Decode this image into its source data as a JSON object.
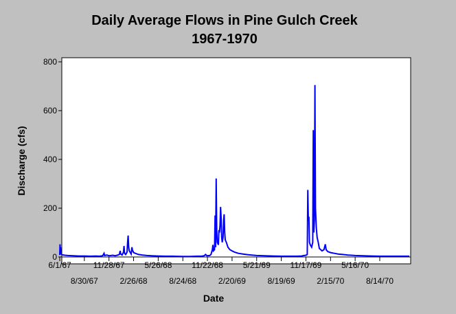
{
  "chart_data": {
    "type": "line",
    "title": "Daily Average Flows in Pine Gulch Creek",
    "subtitle": "1967-1970",
    "xlabel": "Date",
    "ylabel": "Discharge (cfs)",
    "ylim": [
      0,
      800
    ],
    "yticks": [
      0,
      200,
      400,
      600,
      800
    ],
    "xlim": [
      "1967-06-01",
      "1970-11-30"
    ],
    "xticks": [
      {
        "date": "1967-06-01",
        "label": "6/1/67"
      },
      {
        "date": "1967-08-30",
        "label": "8/30/67"
      },
      {
        "date": "1967-11-28",
        "label": "11/28/67"
      },
      {
        "date": "1968-02-26",
        "label": "2/26/68"
      },
      {
        "date": "1968-05-26",
        "label": "5/26/68"
      },
      {
        "date": "1968-08-24",
        "label": "8/24/68"
      },
      {
        "date": "1968-11-22",
        "label": "11/22/68"
      },
      {
        "date": "1969-02-20",
        "label": "2/20/69"
      },
      {
        "date": "1969-05-21",
        "label": "5/21/69"
      },
      {
        "date": "1969-08-19",
        "label": "8/19/69"
      },
      {
        "date": "1969-11-17",
        "label": "11/17/69"
      },
      {
        "date": "1970-02-15",
        "label": "2/15/70"
      },
      {
        "date": "1970-05-16",
        "label": "5/16/70"
      },
      {
        "date": "1970-08-14",
        "label": "8/14/70"
      }
    ],
    "grid": false,
    "legend": "none",
    "series": [
      {
        "color": "#0000ff",
        "points": [
          [
            "1967-06-01",
            8
          ],
          [
            "1967-06-02",
            52
          ],
          [
            "1967-06-03",
            15
          ],
          [
            "1967-06-04",
            40
          ],
          [
            "1967-06-06",
            12
          ],
          [
            "1967-06-10",
            9
          ],
          [
            "1967-06-20",
            7
          ],
          [
            "1967-07-01",
            6
          ],
          [
            "1967-07-20",
            5
          ],
          [
            "1967-08-10",
            4
          ],
          [
            "1967-09-01",
            4
          ],
          [
            "1967-09-20",
            3
          ],
          [
            "1967-10-10",
            4
          ],
          [
            "1967-10-25",
            3
          ],
          [
            "1967-11-05",
            5
          ],
          [
            "1967-11-10",
            15
          ],
          [
            "1967-11-12",
            6
          ],
          [
            "1967-11-20",
            8
          ],
          [
            "1967-11-28",
            5
          ],
          [
            "1967-12-05",
            6
          ],
          [
            "1967-12-12",
            7
          ],
          [
            "1967-12-20",
            5
          ],
          [
            "1967-12-28",
            7
          ],
          [
            "1968-01-05",
            10
          ],
          [
            "1968-01-08",
            25
          ],
          [
            "1968-01-10",
            12
          ],
          [
            "1968-01-15",
            8
          ],
          [
            "1968-01-20",
            20
          ],
          [
            "1968-01-22",
            45
          ],
          [
            "1968-01-24",
            15
          ],
          [
            "1968-01-28",
            10
          ],
          [
            "1968-02-02",
            20
          ],
          [
            "1968-02-04",
            60
          ],
          [
            "1968-02-06",
            88
          ],
          [
            "1968-02-08",
            40
          ],
          [
            "1968-02-10",
            25
          ],
          [
            "1968-02-14",
            18
          ],
          [
            "1968-02-17",
            12
          ],
          [
            "1968-02-20",
            40
          ],
          [
            "1968-02-22",
            28
          ],
          [
            "1968-02-26",
            18
          ],
          [
            "1968-03-05",
            14
          ],
          [
            "1968-03-15",
            10
          ],
          [
            "1968-03-30",
            8
          ],
          [
            "1968-04-15",
            6
          ],
          [
            "1968-05-01",
            5
          ],
          [
            "1968-05-26",
            4
          ],
          [
            "1968-06-20",
            3
          ],
          [
            "1968-07-20",
            3
          ],
          [
            "1968-08-24",
            2
          ],
          [
            "1968-09-20",
            2
          ],
          [
            "1968-10-15",
            3
          ],
          [
            "1968-11-01",
            3
          ],
          [
            "1968-11-10",
            5
          ],
          [
            "1968-11-15",
            10
          ],
          [
            "1968-11-20",
            5
          ],
          [
            "1968-11-30",
            6
          ],
          [
            "1968-12-05",
            10
          ],
          [
            "1968-12-10",
            30
          ],
          [
            "1968-12-12",
            50
          ],
          [
            "1968-12-14",
            25
          ],
          [
            "1968-12-18",
            30
          ],
          [
            "1968-12-20",
            170
          ],
          [
            "1968-12-22",
            40
          ],
          [
            "1968-12-24",
            322
          ],
          [
            "1968-12-26",
            110
          ],
          [
            "1968-12-28",
            60
          ],
          [
            "1969-01-01",
            50
          ],
          [
            "1969-01-03",
            110
          ],
          [
            "1969-01-05",
            100
          ],
          [
            "1969-01-07",
            130
          ],
          [
            "1969-01-09",
            205
          ],
          [
            "1969-01-11",
            160
          ],
          [
            "1969-01-13",
            80
          ],
          [
            "1969-01-15",
            60
          ],
          [
            "1969-01-18",
            80
          ],
          [
            "1969-01-20",
            150
          ],
          [
            "1969-01-22",
            175
          ],
          [
            "1969-01-24",
            100
          ],
          [
            "1969-01-26",
            70
          ],
          [
            "1969-01-30",
            60
          ],
          [
            "1969-02-05",
            40
          ],
          [
            "1969-02-12",
            30
          ],
          [
            "1969-02-20",
            25
          ],
          [
            "1969-03-01",
            20
          ],
          [
            "1969-03-15",
            15
          ],
          [
            "1969-04-01",
            12
          ],
          [
            "1969-04-20",
            9
          ],
          [
            "1969-05-21",
            6
          ],
          [
            "1969-06-20",
            5
          ],
          [
            "1969-07-20",
            4
          ],
          [
            "1969-08-19",
            3
          ],
          [
            "1969-09-15",
            3
          ],
          [
            "1969-10-15",
            3
          ],
          [
            "1969-11-01",
            4
          ],
          [
            "1969-11-10",
            6
          ],
          [
            "1969-11-17",
            7
          ],
          [
            "1969-11-22",
            10
          ],
          [
            "1969-11-24",
            275
          ],
          [
            "1969-11-26",
            150
          ],
          [
            "1969-11-28",
            165
          ],
          [
            "1969-11-30",
            60
          ],
          [
            "1969-12-03",
            50
          ],
          [
            "1969-12-08",
            40
          ],
          [
            "1969-12-12",
            60
          ],
          [
            "1969-12-14",
            520
          ],
          [
            "1969-12-15",
            300
          ],
          [
            "1969-12-16",
            100
          ],
          [
            "1969-12-18",
            150
          ],
          [
            "1969-12-20",
            705
          ],
          [
            "1969-12-22",
            200
          ],
          [
            "1969-12-25",
            120
          ],
          [
            "1969-12-28",
            80
          ],
          [
            "1970-01-01",
            60
          ],
          [
            "1970-01-05",
            35
          ],
          [
            "1970-01-10",
            30
          ],
          [
            "1970-01-15",
            25
          ],
          [
            "1970-01-22",
            30
          ],
          [
            "1970-01-27",
            52
          ],
          [
            "1970-01-30",
            30
          ],
          [
            "1970-02-05",
            22
          ],
          [
            "1970-02-15",
            18
          ],
          [
            "1970-03-01",
            15
          ],
          [
            "1970-03-15",
            12
          ],
          [
            "1970-04-01",
            10
          ],
          [
            "1970-04-20",
            8
          ],
          [
            "1970-05-16",
            6
          ],
          [
            "1970-06-15",
            5
          ],
          [
            "1970-07-15",
            4
          ],
          [
            "1970-08-14",
            3
          ],
          [
            "1970-09-15",
            3
          ],
          [
            "1970-10-15",
            3
          ],
          [
            "1970-11-30",
            3
          ]
        ]
      }
    ]
  }
}
